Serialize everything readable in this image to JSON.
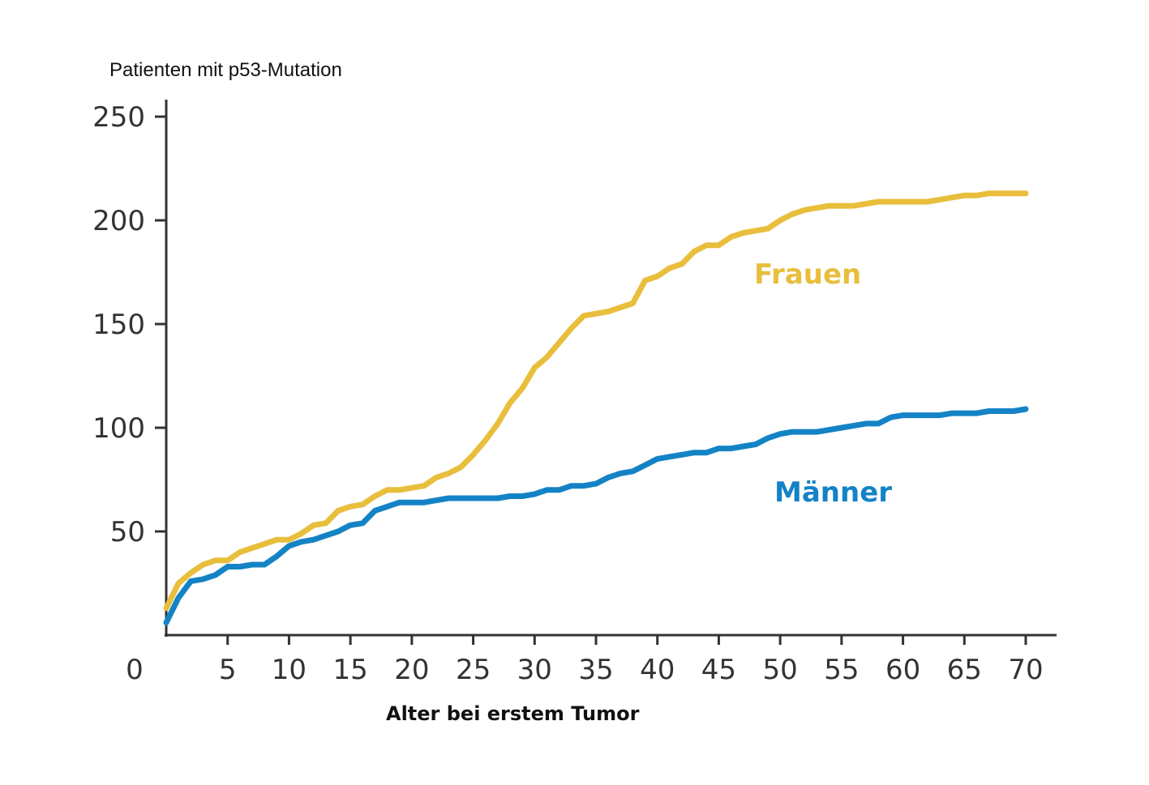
{
  "chart_data": {
    "type": "line",
    "title": "",
    "ylabel": "Patienten mit p53-Mutation",
    "xlabel": "Alter bei erstem Tumor",
    "origin_label": "0",
    "xlim": [
      0,
      70
    ],
    "ylim": [
      0,
      250
    ],
    "x_ticks": [
      "5",
      "10",
      "15",
      "20",
      "25",
      "30",
      "35",
      "40",
      "45",
      "50",
      "55",
      "60",
      "65",
      "70"
    ],
    "y_ticks": [
      "50",
      "100",
      "150",
      "200",
      "250"
    ],
    "grid": false,
    "legend": "inline labels next to lines",
    "series": [
      {
        "name": "Frauen",
        "color": "#E8BE3C",
        "points": [
          [
            0,
            13
          ],
          [
            1,
            25
          ],
          [
            2,
            30
          ],
          [
            3,
            34
          ],
          [
            4,
            36
          ],
          [
            5,
            36
          ],
          [
            6,
            40
          ],
          [
            7,
            42
          ],
          [
            8,
            44
          ],
          [
            9,
            46
          ],
          [
            10,
            46
          ],
          [
            11,
            49
          ],
          [
            12,
            53
          ],
          [
            13,
            54
          ],
          [
            14,
            60
          ],
          [
            15,
            62
          ],
          [
            16,
            63
          ],
          [
            17,
            67
          ],
          [
            18,
            70
          ],
          [
            19,
            70
          ],
          [
            20,
            71
          ],
          [
            21,
            72
          ],
          [
            22,
            76
          ],
          [
            23,
            78
          ],
          [
            24,
            81
          ],
          [
            25,
            87
          ],
          [
            26,
            94
          ],
          [
            27,
            102
          ],
          [
            28,
            112
          ],
          [
            29,
            119
          ],
          [
            30,
            129
          ],
          [
            31,
            134
          ],
          [
            32,
            141
          ],
          [
            33,
            148
          ],
          [
            34,
            154
          ],
          [
            35,
            155
          ],
          [
            36,
            156
          ],
          [
            37,
            158
          ],
          [
            38,
            160
          ],
          [
            39,
            171
          ],
          [
            40,
            173
          ],
          [
            41,
            177
          ],
          [
            42,
            179
          ],
          [
            43,
            185
          ],
          [
            44,
            188
          ],
          [
            45,
            188
          ],
          [
            46,
            192
          ],
          [
            47,
            194
          ],
          [
            48,
            195
          ],
          [
            49,
            196
          ],
          [
            50,
            200
          ],
          [
            51,
            203
          ],
          [
            52,
            205
          ],
          [
            53,
            206
          ],
          [
            54,
            207
          ],
          [
            55,
            207
          ],
          [
            56,
            207
          ],
          [
            57,
            208
          ],
          [
            58,
            209
          ],
          [
            59,
            209
          ],
          [
            60,
            209
          ],
          [
            61,
            209
          ],
          [
            62,
            209
          ],
          [
            63,
            210
          ],
          [
            64,
            211
          ],
          [
            65,
            212
          ],
          [
            66,
            212
          ],
          [
            67,
            213
          ],
          [
            68,
            213
          ],
          [
            69,
            213
          ],
          [
            70,
            213
          ]
        ]
      },
      {
        "name": "Männer",
        "color": "#1483C6",
        "points": [
          [
            0,
            6
          ],
          [
            1,
            18
          ],
          [
            2,
            26
          ],
          [
            3,
            27
          ],
          [
            4,
            29
          ],
          [
            5,
            33
          ],
          [
            6,
            33
          ],
          [
            7,
            34
          ],
          [
            8,
            34
          ],
          [
            9,
            38
          ],
          [
            10,
            43
          ],
          [
            11,
            45
          ],
          [
            12,
            46
          ],
          [
            13,
            48
          ],
          [
            14,
            50
          ],
          [
            15,
            53
          ],
          [
            16,
            54
          ],
          [
            17,
            60
          ],
          [
            18,
            62
          ],
          [
            19,
            64
          ],
          [
            20,
            64
          ],
          [
            21,
            64
          ],
          [
            22,
            65
          ],
          [
            23,
            66
          ],
          [
            24,
            66
          ],
          [
            25,
            66
          ],
          [
            26,
            66
          ],
          [
            27,
            66
          ],
          [
            28,
            67
          ],
          [
            29,
            67
          ],
          [
            30,
            68
          ],
          [
            31,
            70
          ],
          [
            32,
            70
          ],
          [
            33,
            72
          ],
          [
            34,
            72
          ],
          [
            35,
            73
          ],
          [
            36,
            76
          ],
          [
            37,
            78
          ],
          [
            38,
            79
          ],
          [
            39,
            82
          ],
          [
            40,
            85
          ],
          [
            41,
            86
          ],
          [
            42,
            87
          ],
          [
            43,
            88
          ],
          [
            44,
            88
          ],
          [
            45,
            90
          ],
          [
            46,
            90
          ],
          [
            47,
            91
          ],
          [
            48,
            92
          ],
          [
            49,
            95
          ],
          [
            50,
            97
          ],
          [
            51,
            98
          ],
          [
            52,
            98
          ],
          [
            53,
            98
          ],
          [
            54,
            99
          ],
          [
            55,
            100
          ],
          [
            56,
            101
          ],
          [
            57,
            102
          ],
          [
            58,
            102
          ],
          [
            59,
            105
          ],
          [
            60,
            106
          ],
          [
            61,
            106
          ],
          [
            62,
            106
          ],
          [
            63,
            106
          ],
          [
            64,
            107
          ],
          [
            65,
            107
          ],
          [
            66,
            107
          ],
          [
            67,
            108
          ],
          [
            68,
            108
          ],
          [
            69,
            108
          ],
          [
            70,
            109
          ]
        ]
      }
    ]
  }
}
